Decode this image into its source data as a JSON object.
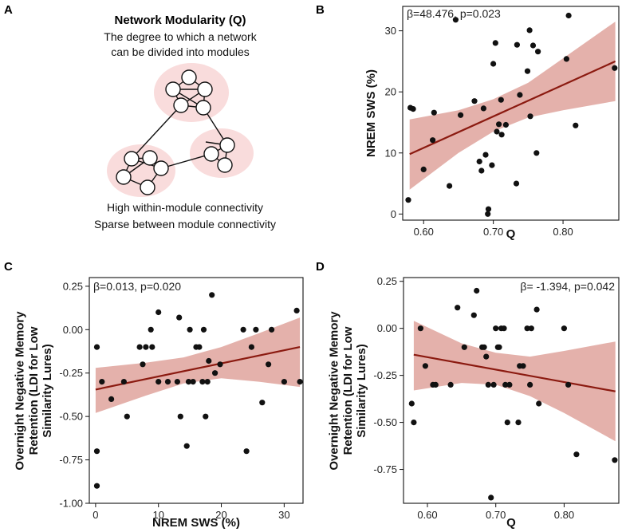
{
  "panels": {
    "A": "A",
    "B": "B",
    "C": "C",
    "D": "D"
  },
  "diagram": {
    "title": "Network Modularity (Q)",
    "subtitle_line1": "The degree to which a network",
    "subtitle_line2": "can be divided into modules",
    "caption_line1": "High within-module connectivity",
    "caption_line2": "Sparse between module connectivity",
    "module_color": "#f9dcdc",
    "node_fill": "#ffffff",
    "edge_color": "#111111"
  },
  "colors": {
    "points": "#111111",
    "fit_line": "#8b1a10",
    "ci_band": "#dfa39c"
  },
  "chart_data": [
    {
      "id": "B",
      "type": "scatter",
      "annotation": "β=48.476, p=0.023",
      "xlabel": "Q",
      "ylabel": "NREM SWS (%)",
      "xlim": [
        0.57,
        0.88
      ],
      "ylim": [
        -1,
        34
      ],
      "xticks": [
        0.6,
        0.7,
        0.8
      ],
      "xtick_labels": [
        "0.60",
        "0.70",
        "0.80"
      ],
      "yticks": [
        0,
        10,
        20,
        30
      ],
      "ytick_labels": [
        "0",
        "10",
        "20",
        "30"
      ],
      "fit": {
        "x0": 0.58,
        "y0": 9.8,
        "x1": 0.875,
        "y1": 25.0
      },
      "ci": {
        "x": [
          0.58,
          0.65,
          0.7,
          0.75,
          0.8,
          0.875
        ],
        "lower": [
          4.0,
          10.0,
          13.5,
          15.8,
          17.0,
          18.5
        ],
        "upper": [
          15.5,
          17.0,
          18.8,
          21.5,
          25.5,
          31.5
        ]
      },
      "points": [
        [
          0.578,
          2.3
        ],
        [
          0.581,
          17.4
        ],
        [
          0.585,
          17.2
        ],
        [
          0.6,
          7.3
        ],
        [
          0.613,
          12.1
        ],
        [
          0.615,
          16.6
        ],
        [
          0.637,
          4.6
        ],
        [
          0.646,
          31.8
        ],
        [
          0.653,
          16.2
        ],
        [
          0.673,
          18.5
        ],
        [
          0.68,
          8.6
        ],
        [
          0.683,
          7.1
        ],
        [
          0.686,
          17.3
        ],
        [
          0.689,
          9.7
        ],
        [
          0.692,
          0.0
        ],
        [
          0.693,
          0.8
        ],
        [
          0.698,
          8.0
        ],
        [
          0.7,
          24.6
        ],
        [
          0.703,
          28.0
        ],
        [
          0.705,
          13.5
        ],
        [
          0.708,
          14.7
        ],
        [
          0.711,
          18.7
        ],
        [
          0.712,
          13.0
        ],
        [
          0.718,
          14.6
        ],
        [
          0.733,
          5.0
        ],
        [
          0.734,
          27.7
        ],
        [
          0.738,
          19.5
        ],
        [
          0.749,
          23.4
        ],
        [
          0.752,
          30.1
        ],
        [
          0.753,
          16.0
        ],
        [
          0.757,
          27.6
        ],
        [
          0.762,
          10.0
        ],
        [
          0.764,
          26.6
        ],
        [
          0.805,
          25.4
        ],
        [
          0.808,
          32.5
        ],
        [
          0.818,
          14.5
        ],
        [
          0.874,
          23.9
        ]
      ]
    },
    {
      "id": "C",
      "type": "scatter",
      "annotation": "β=0.013, p=0.020",
      "xlabel": "NREM SWS (%)",
      "ylabel": "Overnight Negative Memory Retention (LDI for Low Similarity Lures)",
      "ylabel_line1": "Overnight Negative Memory",
      "ylabel_line2": "Retention (LDI for Low",
      "ylabel_line3": "Similarity Lures)",
      "xlim": [
        -1,
        33
      ],
      "ylim": [
        -1.0,
        0.3
      ],
      "xticks": [
        0,
        10,
        20,
        30
      ],
      "xtick_labels": [
        "0",
        "10",
        "20",
        "30"
      ],
      "yticks": [
        0.25,
        0.0,
        -0.25,
        -0.5,
        -0.75,
        -1.0
      ],
      "ytick_labels": [
        "0.25",
        "0.00",
        "-0.25",
        "-0.50",
        "-0.75",
        "-1.00"
      ],
      "fit": {
        "x0": 0,
        "y0": -0.345,
        "x1": 32.5,
        "y1": -0.1
      },
      "ci": {
        "x": [
          0,
          8,
          14,
          20,
          26,
          32.5
        ],
        "lower": [
          -0.48,
          -0.38,
          -0.31,
          -0.28,
          -0.3,
          -0.33
        ],
        "upper": [
          -0.22,
          -0.19,
          -0.16,
          -0.1,
          -0.02,
          0.07
        ]
      },
      "points": [
        [
          0.2,
          -0.1
        ],
        [
          0.2,
          -0.7
        ],
        [
          0.2,
          -0.9
        ],
        [
          1.0,
          -0.3
        ],
        [
          2.5,
          -0.4
        ],
        [
          4.5,
          -0.3
        ],
        [
          5.0,
          -0.5
        ],
        [
          7.0,
          -0.1
        ],
        [
          7.5,
          -0.2
        ],
        [
          8.0,
          -0.1
        ],
        [
          8.8,
          0.0
        ],
        [
          9.0,
          -0.1
        ],
        [
          10.0,
          0.1
        ],
        [
          10.0,
          -0.3
        ],
        [
          11.5,
          -0.3
        ],
        [
          13.0,
          -0.3
        ],
        [
          13.3,
          0.07
        ],
        [
          13.5,
          -0.5
        ],
        [
          14.5,
          -0.67
        ],
        [
          14.8,
          -0.3
        ],
        [
          15.0,
          0.0
        ],
        [
          15.5,
          -0.3
        ],
        [
          16.0,
          -0.1
        ],
        [
          16.5,
          -0.1
        ],
        [
          17.0,
          -0.3
        ],
        [
          17.2,
          0.0
        ],
        [
          17.5,
          -0.5
        ],
        [
          17.8,
          -0.3
        ],
        [
          18.0,
          -0.18
        ],
        [
          18.5,
          0.2
        ],
        [
          19.0,
          -0.25
        ],
        [
          19.8,
          -0.2
        ],
        [
          23.5,
          0.0
        ],
        [
          24.0,
          -0.7
        ],
        [
          24.8,
          -0.1
        ],
        [
          25.5,
          0.0
        ],
        [
          26.5,
          -0.42
        ],
        [
          27.5,
          -0.2
        ],
        [
          28.0,
          0.0
        ],
        [
          30.0,
          -0.3
        ],
        [
          32.0,
          0.11
        ],
        [
          32.5,
          -0.3
        ]
      ]
    },
    {
      "id": "D",
      "type": "scatter",
      "annotation": "β= -1.394, p=0.042",
      "xlabel": "Q",
      "ylabel": "Overnight Negative Memory Retention (LDI for Low Similarity Lures)",
      "ylabel_line1": "Overnight Negative Memory",
      "ylabel_line2": "Retention (LDI for Low",
      "ylabel_line3": "Similarity Lures)",
      "xlim": [
        0.565,
        0.88
      ],
      "ylim": [
        -0.93,
        0.27
      ],
      "xticks": [
        0.6,
        0.7,
        0.8
      ],
      "xtick_labels": [
        "0.60",
        "0.70",
        "0.80"
      ],
      "yticks": [
        0.25,
        0.0,
        -0.25,
        -0.5,
        -0.75
      ],
      "ytick_labels": [
        "0.25",
        "0.00",
        "-0.25",
        "-0.50",
        "-0.75"
      ],
      "fit": {
        "x0": 0.58,
        "y0": -0.14,
        "x1": 0.875,
        "y1": -0.335
      },
      "ci": {
        "x": [
          0.58,
          0.65,
          0.7,
          0.75,
          0.8,
          0.875
        ],
        "lower": [
          -0.33,
          -0.29,
          -0.3,
          -0.36,
          -0.45,
          -0.6
        ],
        "upper": [
          0.04,
          -0.08,
          -0.13,
          -0.15,
          -0.12,
          -0.07
        ]
      },
      "points": [
        [
          0.577,
          -0.4
        ],
        [
          0.58,
          -0.5
        ],
        [
          0.59,
          0.0
        ],
        [
          0.597,
          -0.2
        ],
        [
          0.608,
          -0.3
        ],
        [
          0.612,
          -0.3
        ],
        [
          0.634,
          -0.3
        ],
        [
          0.644,
          0.11
        ],
        [
          0.654,
          -0.1
        ],
        [
          0.668,
          0.07
        ],
        [
          0.672,
          0.2
        ],
        [
          0.68,
          -0.1
        ],
        [
          0.683,
          -0.1
        ],
        [
          0.686,
          -0.15
        ],
        [
          0.689,
          -0.3
        ],
        [
          0.693,
          -0.9
        ],
        [
          0.697,
          -0.3
        ],
        [
          0.7,
          0.0
        ],
        [
          0.703,
          -0.1
        ],
        [
          0.705,
          -0.1
        ],
        [
          0.708,
          0.0
        ],
        [
          0.712,
          0.0
        ],
        [
          0.714,
          -0.3
        ],
        [
          0.717,
          -0.5
        ],
        [
          0.72,
          -0.3
        ],
        [
          0.733,
          -0.5
        ],
        [
          0.735,
          -0.2
        ],
        [
          0.74,
          -0.2
        ],
        [
          0.746,
          0.0
        ],
        [
          0.75,
          -0.3
        ],
        [
          0.752,
          0.0
        ],
        [
          0.76,
          0.1
        ],
        [
          0.763,
          -0.4
        ],
        [
          0.8,
          0.0
        ],
        [
          0.806,
          -0.3
        ],
        [
          0.818,
          -0.67
        ],
        [
          0.874,
          -0.7
        ]
      ]
    }
  ]
}
